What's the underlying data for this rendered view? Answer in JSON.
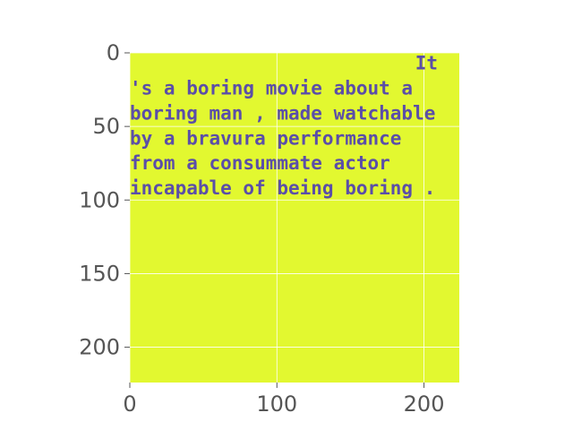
{
  "chart_data": {
    "type": "image",
    "title": "",
    "xlabel": "",
    "ylabel": "",
    "xlim": [
      0,
      224
    ],
    "ylim": [
      224,
      0
    ],
    "x_ticks": [
      0,
      100,
      200
    ],
    "y_ticks": [
      0,
      50,
      100,
      150,
      200
    ],
    "grid": true,
    "background_color": "#e2f830",
    "text_color": "#5b4ea8",
    "image_text_lines": [
      {
        "text": "It",
        "row": 7
      },
      {
        "text": "'s a boring movie about a",
        "row": 24
      },
      {
        "text": "boring man , made watchable",
        "row": 41
      },
      {
        "text": "by a bravura performance",
        "row": 58
      },
      {
        "text": "from a consummate actor",
        "row": 75
      },
      {
        "text": "incapable of being boring .",
        "row": 92
      }
    ]
  }
}
